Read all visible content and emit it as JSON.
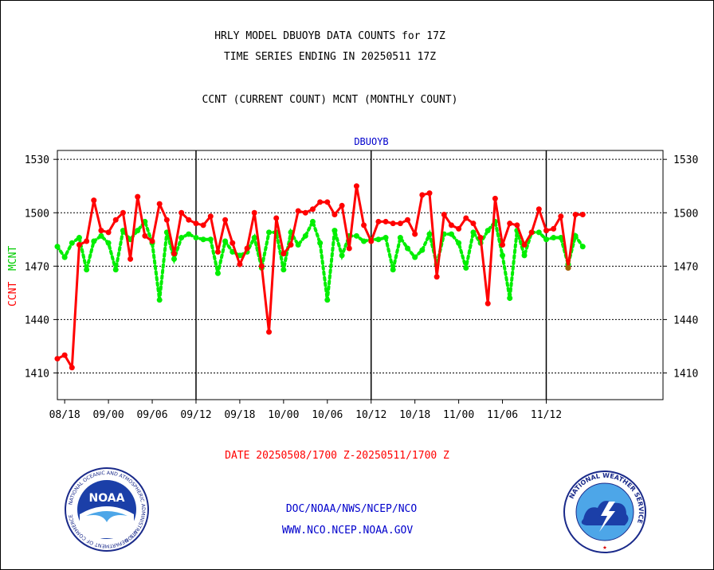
{
  "header": {
    "line1": "HRLY MODEL DBUOYB DATA COUNTS for 17Z",
    "line2": "TIME SERIES ENDING IN 20250511 17Z",
    "line3": "CCNT (CURRENT COUNT) MCNT (MONTHLY COUNT)"
  },
  "date_range": "DATE 20250508/1700 Z-20250511/1700 Z",
  "footer": {
    "line1": "DOC/NOAA/NWS/NCEP/NCO",
    "line2": "WWW.NCO.NCEP.NOAA.GOV"
  },
  "logos": {
    "noaa_center": "NOAA",
    "noaa_ring": "NATIONAL OCEANIC AND ATMOSPHERIC ADMINISTRATION",
    "noaa_bottom": "U.S. DEPARTMENT OF COMMERCE",
    "nws_ring": "NATIONAL WEATHER SERVICE"
  },
  "chart_data": {
    "type": "line",
    "title": "DBUOYB",
    "ylabel_ccnt": "CCNT",
    "ylabel_mcnt": "MCNT",
    "ylim": [
      1395,
      1535
    ],
    "yticks": [
      1410,
      1440,
      1470,
      1500,
      1530
    ],
    "xlim": [
      0,
      83
    ],
    "x_ticks": [
      {
        "x": 1,
        "label": "08/18"
      },
      {
        "x": 7,
        "label": "09/00"
      },
      {
        "x": 13,
        "label": "09/06"
      },
      {
        "x": 19,
        "label": "09/12"
      },
      {
        "x": 25,
        "label": "09/18"
      },
      {
        "x": 31,
        "label": "10/00"
      },
      {
        "x": 37,
        "label": "10/06"
      },
      {
        "x": 43,
        "label": "10/12"
      },
      {
        "x": 49,
        "label": "10/18"
      },
      {
        "x": 55,
        "label": "11/00"
      },
      {
        "x": 61,
        "label": "11/06"
      },
      {
        "x": 67,
        "label": "11/12"
      }
    ],
    "day_boundaries": [
      19,
      43,
      67
    ],
    "grid": true,
    "colors": {
      "ccnt": "#ff0000",
      "mcnt": "#00ee00",
      "last_point": "#996600"
    },
    "series": [
      {
        "name": "CCNT",
        "values": [
          1418,
          1420,
          1413,
          1482,
          1484,
          1507,
          1490,
          1489,
          1496,
          1500,
          1474,
          1509,
          1487,
          1484,
          1505,
          1496,
          1477,
          1500,
          1496,
          1494,
          1493,
          1498,
          1478,
          1496,
          1483,
          1471,
          1480,
          1500,
          1470,
          1433,
          1497,
          1477,
          1482,
          1501,
          1500,
          1502,
          1506,
          1506,
          1499,
          1504,
          1480,
          1515,
          1493,
          1484,
          1495,
          1495,
          1494,
          1494,
          1496,
          1488,
          1510,
          1511,
          1464,
          1499,
          1493,
          1491,
          1497,
          1494,
          1486,
          1449,
          1508,
          1482,
          1494,
          1493,
          1482,
          1489,
          1502,
          1490,
          1491,
          1498,
          1469,
          1499,
          1499
        ]
      },
      {
        "name": "MCNT",
        "values": [
          1481,
          1475,
          1483,
          1486,
          1468,
          1484,
          1487,
          1483,
          1468,
          1490,
          1485,
          1490,
          1495,
          1483,
          1451,
          1489,
          1474,
          1486,
          1488,
          1486,
          1485,
          1485,
          1466,
          1484,
          1478,
          1476,
          1478,
          1486,
          1469,
          1489,
          1489,
          1468,
          1489,
          1482,
          1487,
          1495,
          1483,
          1451,
          1490,
          1476,
          1487,
          1487,
          1484,
          1485,
          1485,
          1486,
          1468,
          1486,
          1480,
          1475,
          1479,
          1488,
          1471,
          1488,
          1488,
          1483,
          1469,
          1489,
          1483,
          1490,
          1495,
          1476,
          1452,
          1490,
          1476,
          1489,
          1489,
          1485,
          1486,
          1486,
          1471,
          1487,
          1481
        ]
      }
    ]
  }
}
